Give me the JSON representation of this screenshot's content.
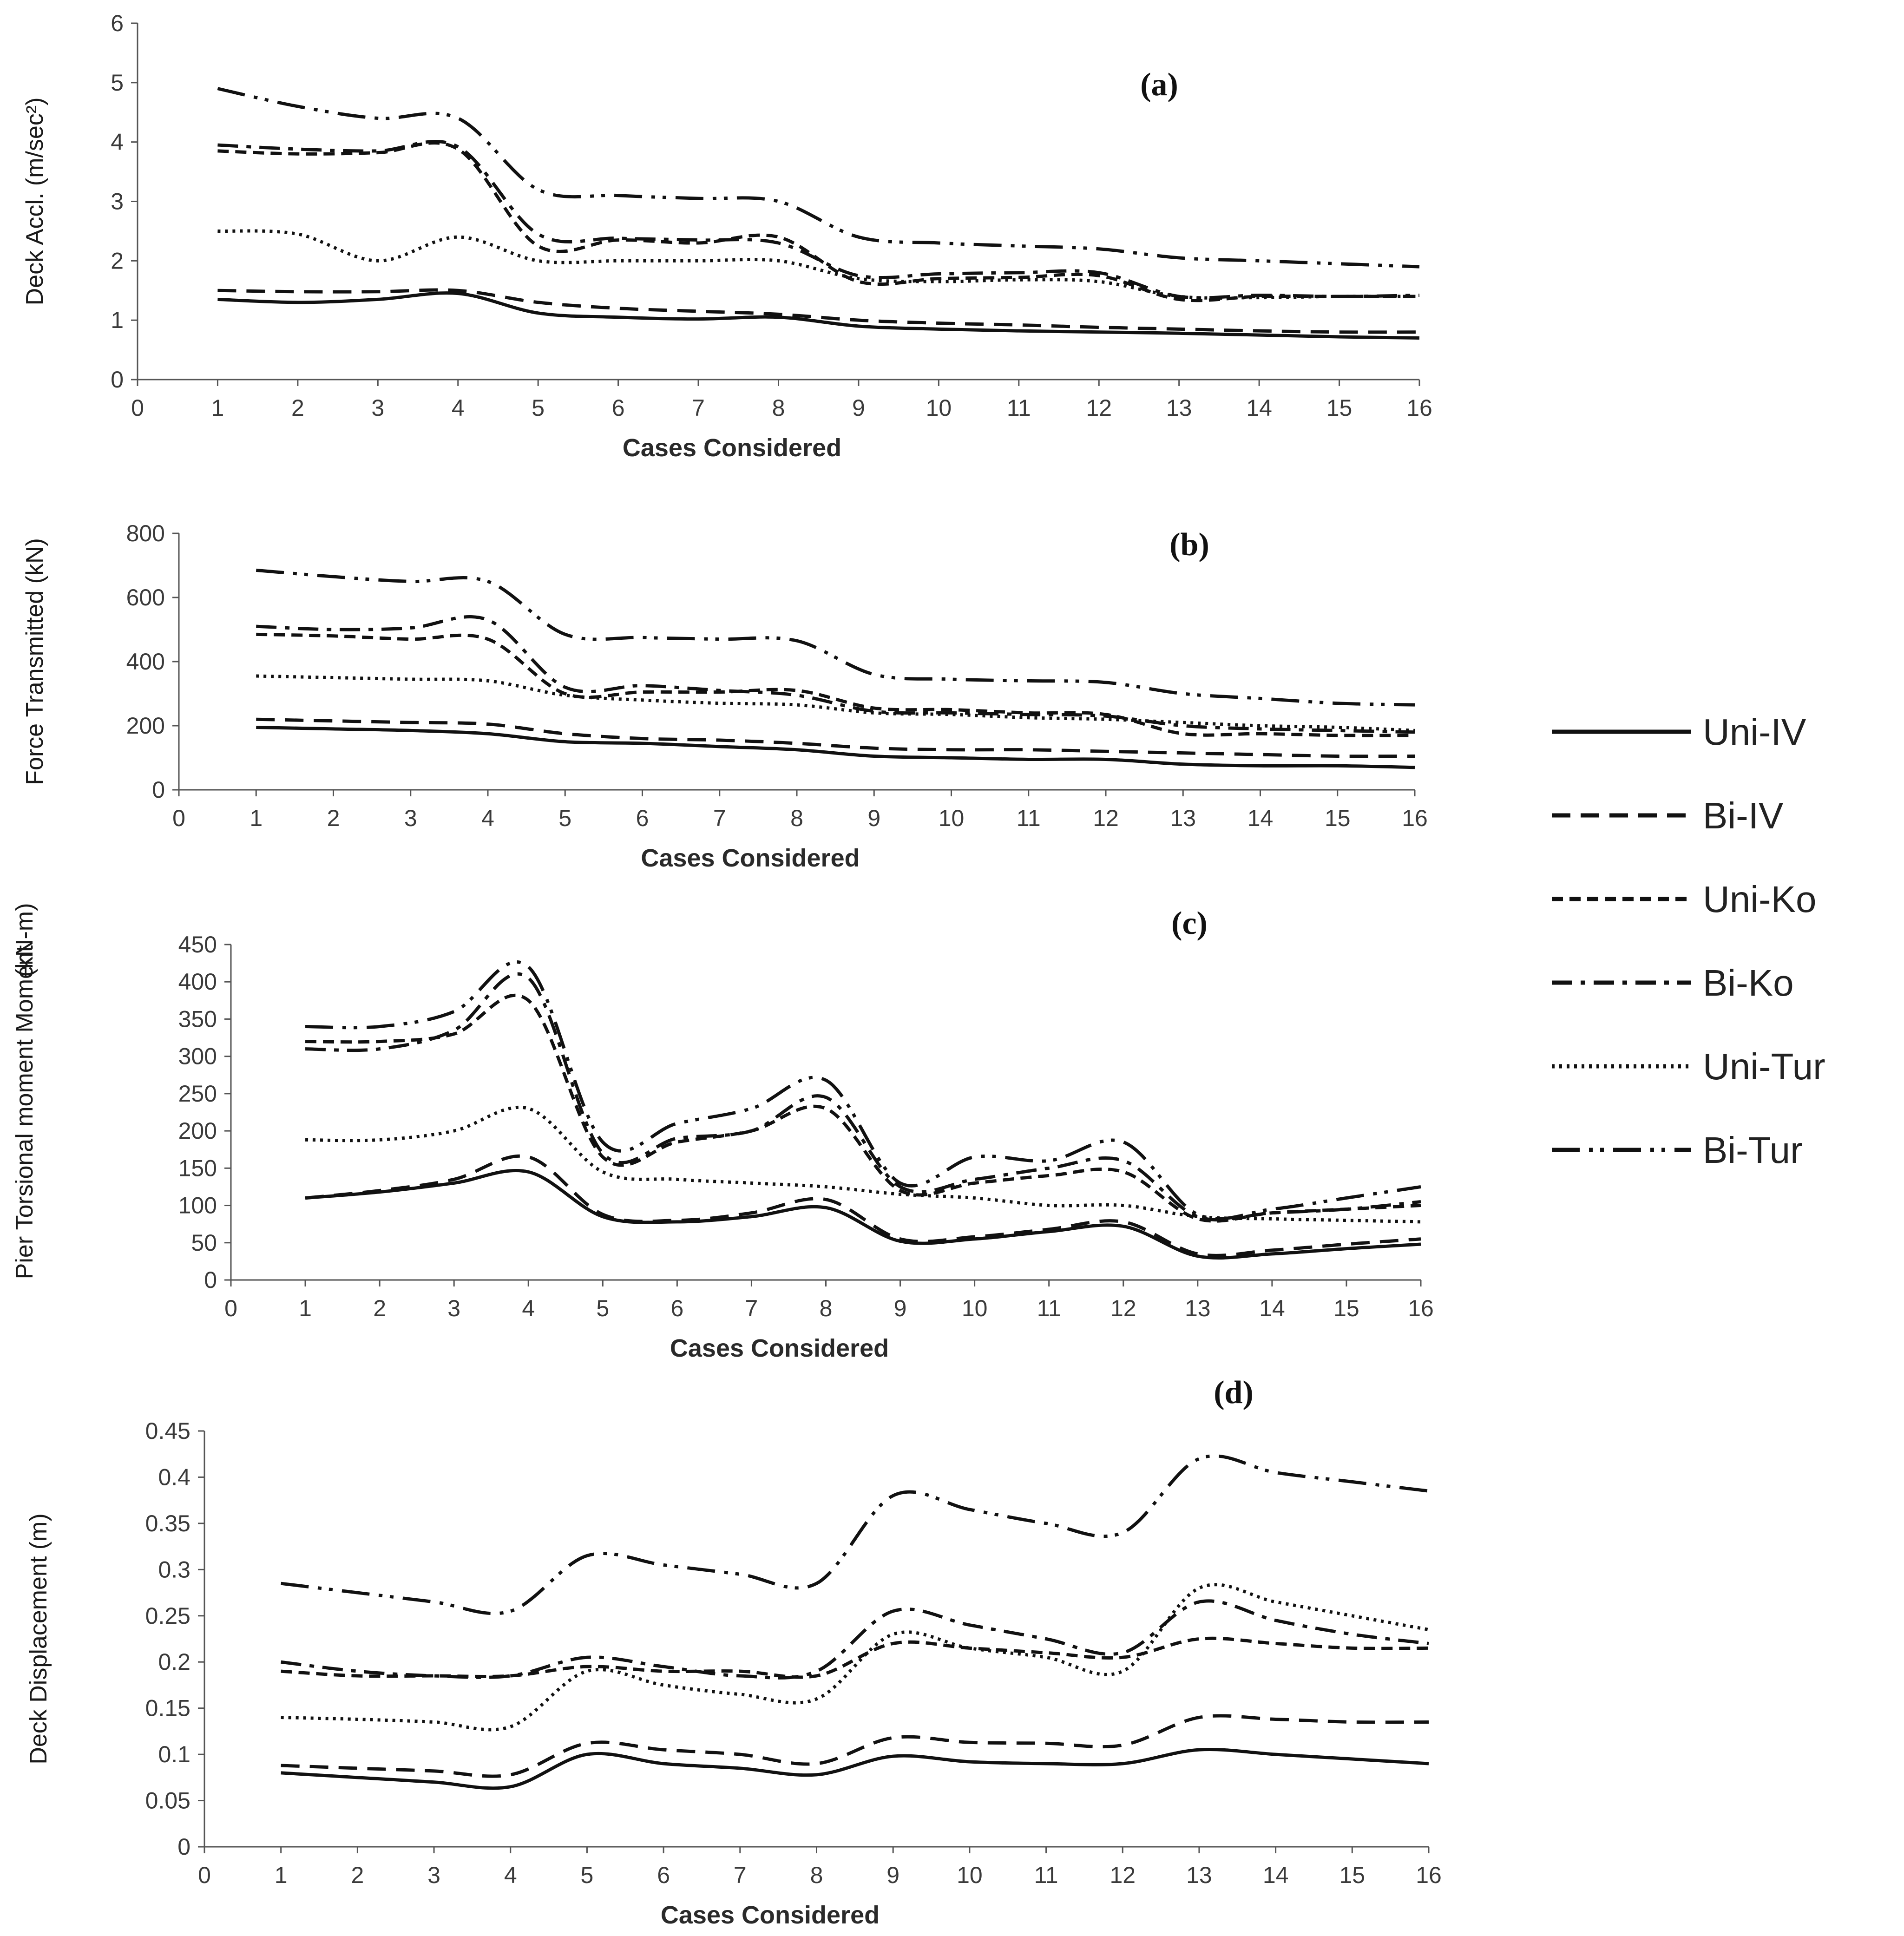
{
  "legend": [
    {
      "key": "uni_iv",
      "label": "Uni-IV"
    },
    {
      "key": "bi_iv",
      "label": "Bi-IV"
    },
    {
      "key": "uni_ko",
      "label": "Uni-Ko"
    },
    {
      "key": "bi_ko",
      "label": "Bi-Ko"
    },
    {
      "key": "uni_tur",
      "label": "Uni-Tur"
    },
    {
      "key": "bi_tur",
      "label": "Bi-Tur"
    }
  ],
  "chart_data": [
    {
      "type": "line",
      "panel_label": "(a)",
      "title": "",
      "xlabel": "Cases Considered",
      "ylabel": "Deck Accl. (m/sec²)",
      "xlim": [
        0,
        16
      ],
      "ylim": [
        0,
        6
      ],
      "x_ticks": [
        "0",
        "1",
        "2",
        "3",
        "4",
        "5",
        "6",
        "7",
        "8",
        "9",
        "10",
        "11",
        "12",
        "13",
        "14",
        "15",
        "16"
      ],
      "y_ticks": [
        "0",
        "1",
        "2",
        "3",
        "4",
        "5",
        "6"
      ],
      "x": [
        1,
        2,
        3,
        4,
        5,
        6,
        7,
        8,
        9,
        10,
        11,
        12,
        13,
        14,
        15,
        16
      ],
      "series": [
        {
          "name": "Uni-IV",
          "values": [
            1.35,
            1.3,
            1.35,
            1.45,
            1.12,
            1.05,
            1.02,
            1.05,
            0.9,
            0.85,
            0.82,
            0.8,
            0.78,
            0.75,
            0.72,
            0.7
          ]
        },
        {
          "name": "Bi-IV",
          "values": [
            1.5,
            1.48,
            1.48,
            1.5,
            1.3,
            1.2,
            1.15,
            1.1,
            1.0,
            0.95,
            0.92,
            0.88,
            0.85,
            0.82,
            0.8,
            0.8
          ]
        },
        {
          "name": "Uni-Ko",
          "values": [
            3.85,
            3.8,
            3.82,
            3.88,
            2.25,
            2.35,
            2.3,
            2.4,
            1.65,
            1.7,
            1.72,
            1.75,
            1.35,
            1.4,
            1.4,
            1.4
          ]
        },
        {
          "name": "Bi-Ko",
          "values": [
            3.95,
            3.88,
            3.85,
            3.92,
            2.45,
            2.38,
            2.35,
            2.3,
            1.75,
            1.78,
            1.8,
            1.8,
            1.4,
            1.42,
            1.4,
            1.42
          ]
        },
        {
          "name": "Uni-Tur",
          "values": [
            2.5,
            2.45,
            2.0,
            2.4,
            2.0,
            2.0,
            2.0,
            2.0,
            1.7,
            1.65,
            1.68,
            1.65,
            1.4,
            1.38,
            1.4,
            1.4
          ]
        },
        {
          "name": "Bi-Tur",
          "values": [
            4.9,
            4.6,
            4.4,
            4.4,
            3.2,
            3.1,
            3.05,
            3.0,
            2.4,
            2.3,
            2.25,
            2.2,
            2.05,
            2.0,
            1.95,
            1.9
          ]
        }
      ]
    },
    {
      "type": "line",
      "panel_label": "(b)",
      "title": "",
      "xlabel": "Cases Considered",
      "ylabel": "Force Transmitted (kN)",
      "xlim": [
        0,
        16
      ],
      "ylim": [
        0,
        800
      ],
      "x_ticks": [
        "0",
        "1",
        "2",
        "3",
        "4",
        "5",
        "6",
        "7",
        "8",
        "9",
        "10",
        "11",
        "12",
        "13",
        "14",
        "15",
        "16"
      ],
      "y_ticks": [
        "0",
        "200",
        "400",
        "600",
        "800"
      ],
      "x": [
        1,
        2,
        3,
        4,
        5,
        6,
        7,
        8,
        9,
        10,
        11,
        12,
        13,
        14,
        15,
        16
      ],
      "series": [
        {
          "name": "Uni-IV",
          "values": [
            195,
            190,
            185,
            175,
            150,
            145,
            135,
            125,
            105,
            100,
            95,
            95,
            80,
            75,
            75,
            70
          ]
        },
        {
          "name": "Bi-IV",
          "values": [
            220,
            215,
            210,
            205,
            175,
            160,
            155,
            145,
            130,
            125,
            125,
            120,
            115,
            110,
            105,
            105
          ]
        },
        {
          "name": "Uni-Ko",
          "values": [
            485,
            480,
            470,
            470,
            300,
            305,
            305,
            310,
            255,
            250,
            240,
            235,
            175,
            175,
            170,
            170
          ]
        },
        {
          "name": "Bi-Ko",
          "values": [
            510,
            500,
            505,
            530,
            320,
            325,
            310,
            295,
            245,
            240,
            235,
            230,
            200,
            190,
            185,
            180
          ]
        },
        {
          "name": "Uni-Tur",
          "values": [
            355,
            350,
            345,
            340,
            295,
            280,
            270,
            265,
            240,
            235,
            225,
            220,
            210,
            200,
            195,
            185
          ]
        },
        {
          "name": "Bi-Tur",
          "values": [
            685,
            665,
            650,
            650,
            485,
            475,
            470,
            465,
            360,
            345,
            340,
            335,
            300,
            285,
            270,
            265
          ]
        }
      ]
    },
    {
      "type": "line",
      "panel_label": "(c)",
      "title": "",
      "xlabel": "Cases Considered",
      "ylabel": "Pier Torsional moment Moment",
      "ylabel_unit": "(kN-m)",
      "xlim": [
        0,
        16
      ],
      "ylim": [
        0,
        450
      ],
      "x_ticks": [
        "0",
        "1",
        "2",
        "3",
        "4",
        "5",
        "6",
        "7",
        "8",
        "9",
        "10",
        "11",
        "12",
        "13",
        "14",
        "15",
        "16"
      ],
      "y_ticks": [
        "0",
        "50",
        "100",
        "150",
        "200",
        "250",
        "300",
        "350",
        "400",
        "450"
      ],
      "x": [
        1,
        2,
        3,
        4,
        5,
        6,
        7,
        8,
        9,
        10,
        11,
        12,
        13,
        14,
        15,
        16
      ],
      "series": [
        {
          "name": "Uni-IV",
          "values": [
            110,
            118,
            130,
            145,
            85,
            78,
            85,
            97,
            52,
            55,
            65,
            72,
            32,
            35,
            42,
            48
          ]
        },
        {
          "name": "Bi-IV",
          "values": [
            110,
            120,
            135,
            165,
            88,
            80,
            90,
            108,
            55,
            58,
            68,
            78,
            35,
            40,
            48,
            55
          ]
        },
        {
          "name": "Uni-Ko",
          "values": [
            320,
            320,
            330,
            375,
            165,
            185,
            200,
            230,
            120,
            130,
            140,
            145,
            82,
            90,
            95,
            100
          ]
        },
        {
          "name": "Bi-Ko",
          "values": [
            310,
            310,
            335,
            405,
            170,
            190,
            200,
            245,
            125,
            135,
            150,
            160,
            85,
            90,
            95,
            105
          ]
        },
        {
          "name": "Uni-Tur",
          "values": [
            188,
            188,
            200,
            230,
            145,
            135,
            130,
            125,
            115,
            110,
            100,
            100,
            85,
            82,
            80,
            78
          ]
        },
        {
          "name": "Bi-Tur",
          "values": [
            340,
            340,
            360,
            420,
            185,
            210,
            230,
            268,
            130,
            165,
            160,
            185,
            88,
            95,
            110,
            125
          ]
        }
      ]
    },
    {
      "type": "line",
      "panel_label": "(d)",
      "title": "",
      "xlabel": "Cases Considered",
      "ylabel": "Deck Displacement (m)",
      "xlim": [
        0,
        16
      ],
      "ylim": [
        0,
        0.45
      ],
      "x_ticks": [
        "0",
        "1",
        "2",
        "3",
        "4",
        "5",
        "6",
        "7",
        "8",
        "9",
        "10",
        "11",
        "12",
        "13",
        "14",
        "15",
        "16"
      ],
      "y_ticks": [
        "0",
        "0.05",
        "0.1",
        "0.15",
        "0.2",
        "0.25",
        "0.3",
        "0.35",
        "0.4",
        "0.45"
      ],
      "x": [
        1,
        2,
        3,
        4,
        5,
        6,
        7,
        8,
        9,
        10,
        11,
        12,
        13,
        14,
        15,
        16
      ],
      "series": [
        {
          "name": "Uni-IV",
          "values": [
            0.08,
            0.075,
            0.07,
            0.065,
            0.1,
            0.09,
            0.085,
            0.078,
            0.098,
            0.092,
            0.09,
            0.09,
            0.105,
            0.1,
            0.095,
            0.09
          ]
        },
        {
          "name": "Bi-IV",
          "values": [
            0.088,
            0.085,
            0.082,
            0.078,
            0.112,
            0.105,
            0.1,
            0.09,
            0.118,
            0.113,
            0.112,
            0.11,
            0.14,
            0.138,
            0.135,
            0.135
          ]
        },
        {
          "name": "Uni-Ko",
          "values": [
            0.19,
            0.185,
            0.185,
            0.185,
            0.195,
            0.19,
            0.19,
            0.185,
            0.22,
            0.215,
            0.21,
            0.205,
            0.225,
            0.22,
            0.215,
            0.215
          ]
        },
        {
          "name": "Bi-Ko",
          "values": [
            0.2,
            0.19,
            0.185,
            0.185,
            0.205,
            0.195,
            0.185,
            0.19,
            0.255,
            0.24,
            0.225,
            0.21,
            0.265,
            0.245,
            0.23,
            0.22
          ]
        },
        {
          "name": "Uni-Tur",
          "values": [
            0.14,
            0.138,
            0.135,
            0.13,
            0.19,
            0.175,
            0.165,
            0.16,
            0.23,
            0.215,
            0.205,
            0.19,
            0.28,
            0.265,
            0.25,
            0.235
          ]
        },
        {
          "name": "Bi-Tur",
          "values": [
            0.285,
            0.275,
            0.265,
            0.255,
            0.315,
            0.305,
            0.295,
            0.285,
            0.38,
            0.365,
            0.35,
            0.34,
            0.42,
            0.405,
            0.395,
            0.385
          ]
        }
      ]
    }
  ]
}
